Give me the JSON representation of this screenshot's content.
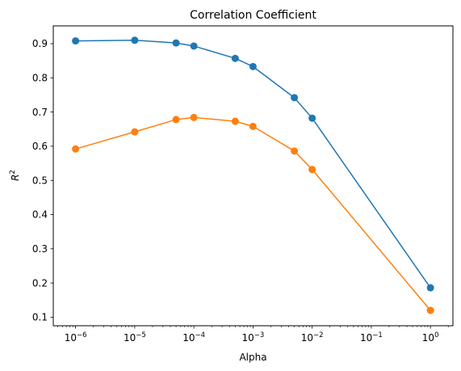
{
  "chart_data": {
    "type": "line",
    "title": "Correlation Coefficient",
    "xlabel": "Alpha",
    "ylabel": "R",
    "ylabel_superscript": "2",
    "xscale": "log",
    "xlim": [
      4.2e-07,
      2.4
    ],
    "ylim": [
      0.075,
      0.952
    ],
    "grid": false,
    "legend": "none",
    "x_ticks": [
      1e-06,
      1e-05,
      0.0001,
      0.001,
      0.01,
      0.1,
      1
    ],
    "x_tick_labels": [
      {
        "base": "10",
        "exp": "−6"
      },
      {
        "base": "10",
        "exp": "−5"
      },
      {
        "base": "10",
        "exp": "−4"
      },
      {
        "base": "10",
        "exp": "−3"
      },
      {
        "base": "10",
        "exp": "−2"
      },
      {
        "base": "10",
        "exp": "−1"
      },
      {
        "base": "10",
        "exp": "0"
      }
    ],
    "y_ticks": [
      0.1,
      0.2,
      0.3,
      0.4,
      0.5,
      0.6,
      0.7,
      0.8,
      0.9
    ],
    "y_tick_labels": [
      "0.1",
      "0.2",
      "0.3",
      "0.4",
      "0.5",
      "0.6",
      "0.7",
      "0.8",
      "0.9"
    ],
    "x": [
      1e-06,
      1e-05,
      5e-05,
      0.0001,
      0.0005,
      0.001,
      0.005,
      0.01,
      1
    ],
    "series": [
      {
        "color": "#1f77b4",
        "values": [
          0.908,
          0.91,
          0.902,
          0.893,
          0.857,
          0.833,
          0.742,
          0.682,
          0.186
        ]
      },
      {
        "color": "#ff7f0e",
        "values": [
          0.592,
          0.642,
          0.678,
          0.684,
          0.673,
          0.658,
          0.586,
          0.532,
          0.12
        ]
      }
    ]
  }
}
